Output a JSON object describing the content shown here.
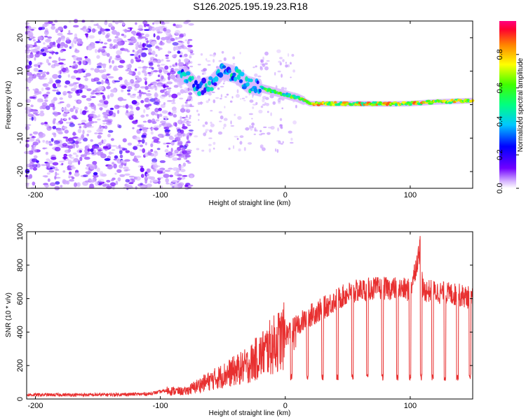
{
  "title": "S126.2025.195.19.23.R18",
  "chart_data": [
    {
      "type": "heatmap",
      "xlabel": "Height of straight line (km)",
      "ylabel": "Frequency (Hz)",
      "xlim": [
        -207,
        150
      ],
      "ylim": [
        -25,
        25
      ],
      "xticks": [
        "-200",
        "-100",
        "0",
        "100"
      ],
      "yticks": [
        "-20",
        "-10",
        "0",
        "10",
        "20"
      ],
      "colorbar": {
        "label": "Normalized spectral amplitude",
        "range": [
          0,
          1
        ],
        "ticks": [
          "0.0",
          "0.2",
          "0.4",
          "0.6",
          "0.8"
        ]
      },
      "signal_ridge": {
        "x": [
          -85,
          -80,
          -70,
          -60,
          -50,
          -40,
          -30,
          -20,
          -10,
          0,
          10,
          20,
          40,
          60,
          80,
          100,
          120,
          150
        ],
        "frequency": [
          8,
          9,
          5,
          6,
          10,
          9,
          6,
          5,
          4,
          3,
          2,
          0.3,
          0.3,
          0.3,
          0.2,
          0.3,
          0.8,
          1.2
        ]
      },
      "noise_region": {
        "x_from": -207,
        "x_to": -80
      }
    },
    {
      "type": "line",
      "xlabel": "Height of straight line (km)",
      "ylabel": "SNR (10 * v/v)",
      "xlim": [
        -207,
        150
      ],
      "ylim": [
        0,
        1000
      ],
      "xticks": [
        "-200",
        "-100",
        "0",
        "100"
      ],
      "yticks": [
        "0",
        "200",
        "400",
        "600",
        "800",
        "1000"
      ],
      "color": "#e83030",
      "series": [
        {
          "x": [
            -207,
            -150,
            -110,
            -95,
            -80,
            -70,
            -60,
            -50,
            -40,
            -30,
            -20,
            -10,
            0,
            10,
            20,
            30,
            40,
            50,
            60,
            70,
            80,
            90,
            100,
            108,
            110,
            120,
            130,
            140,
            150
          ],
          "values": [
            25,
            25,
            30,
            50,
            45,
            80,
            110,
            140,
            170,
            200,
            260,
            320,
            380,
            440,
            500,
            540,
            590,
            630,
            650,
            660,
            660,
            660,
            650,
            900,
            650,
            640,
            630,
            620,
            600
          ]
        }
      ],
      "dropouts_near_x": [
        5,
        18,
        30,
        42,
        54,
        66,
        78,
        90,
        100,
        109,
        118,
        128,
        138,
        148
      ]
    }
  ]
}
